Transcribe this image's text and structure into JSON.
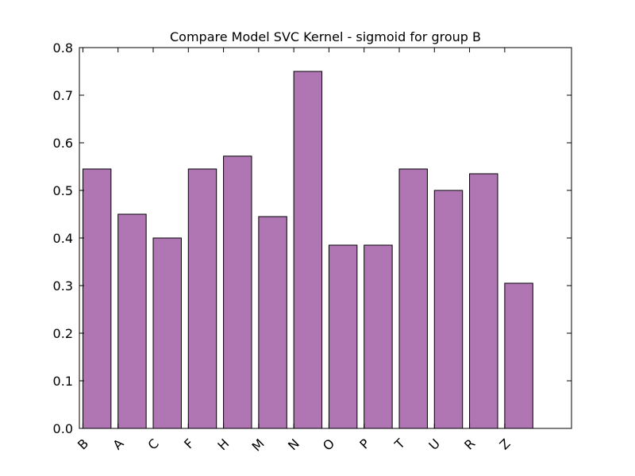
{
  "chart_data": {
    "type": "bar",
    "title": "Compare Model SVC Kernel - sigmoid for group B",
    "xlabel": "",
    "ylabel": "",
    "categories": [
      "B",
      "A",
      "C",
      "F",
      "H",
      "M",
      "N",
      "O",
      "P",
      "T",
      "U",
      "R",
      "Z"
    ],
    "values": [
      0.545,
      0.45,
      0.4,
      0.545,
      0.572,
      0.445,
      0.75,
      0.385,
      0.385,
      0.545,
      0.5,
      0.535,
      0.305
    ],
    "ylim": [
      0.0,
      0.8
    ],
    "yticks": [
      "0.0",
      "0.1",
      "0.2",
      "0.3",
      "0.4",
      "0.5",
      "0.6",
      "0.7",
      "0.8"
    ],
    "grid": false,
    "legend": "none",
    "bar_color": "#b075b3",
    "edge_color": "#000000"
  }
}
